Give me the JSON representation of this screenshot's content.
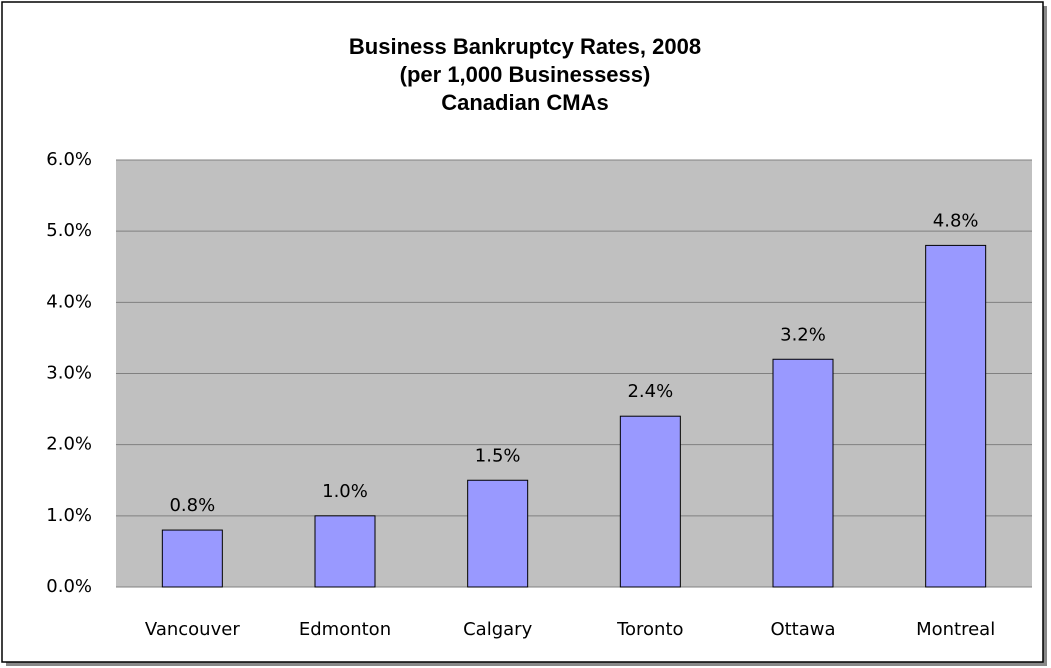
{
  "chart_data": {
    "type": "bar",
    "title": [
      "Business Bankruptcy Rates, 2008",
      "(per 1,000 Businessess)",
      "Canadian CMAs"
    ],
    "categories": [
      "Vancouver",
      "Edmonton",
      "Calgary",
      "Toronto",
      "Ottawa",
      "Montreal"
    ],
    "values": [
      0.8,
      1.0,
      1.5,
      2.4,
      3.2,
      4.8
    ],
    "value_labels": [
      "0.8%",
      "1.0%",
      "1.5%",
      "2.4%",
      "3.2%",
      "4.8%"
    ],
    "color": "#9999ff",
    "ylim": [
      0,
      6
    ],
    "yticks": [
      {
        "value": 0,
        "label": "0.0%"
      },
      {
        "value": 1,
        "label": "1.0%"
      },
      {
        "value": 2,
        "label": "2.0%"
      },
      {
        "value": 3,
        "label": "3.0%"
      },
      {
        "value": 4,
        "label": "4.0%"
      },
      {
        "value": 5,
        "label": "5.0%"
      },
      {
        "value": 6,
        "label": "6.0%"
      }
    ],
    "grid": true
  }
}
